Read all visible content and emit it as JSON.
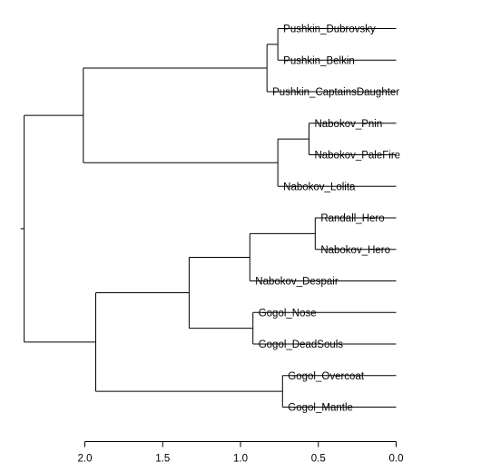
{
  "diagram": {
    "type": "dendrogram",
    "orientation": "horizontal",
    "leaves": [
      "Pushkin_Dubrovsky",
      "Pushkin_Belkin",
      "Pushkin_CaptainsDaughter",
      "Nabokov_Pnin",
      "Nabokov_PaleFire",
      "Nabokov_Lolita",
      "Randall_Hero",
      "Nabokov_Hero",
      "Nabokov_Despair",
      "Gogol_Nose",
      "Gogol_DeadSouls",
      "Gogol_Overcoat",
      "Gogol_Mantle"
    ],
    "merges": [
      {
        "id": "m1",
        "height": 0.76,
        "children": [
          "leaf:0",
          "leaf:1"
        ]
      },
      {
        "id": "m2",
        "height": 0.83,
        "children": [
          "m1",
          "leaf:2"
        ]
      },
      {
        "id": "m3",
        "height": 0.56,
        "children": [
          "leaf:3",
          "leaf:4"
        ]
      },
      {
        "id": "m4",
        "height": 0.76,
        "children": [
          "m3",
          "leaf:5"
        ]
      },
      {
        "id": "m5",
        "height": 2.01,
        "children": [
          "m2",
          "m4"
        ]
      },
      {
        "id": "m6",
        "height": 0.52,
        "children": [
          "leaf:6",
          "leaf:7"
        ]
      },
      {
        "id": "m7",
        "height": 0.94,
        "children": [
          "m6",
          "leaf:8"
        ]
      },
      {
        "id": "m8",
        "height": 0.92,
        "children": [
          "leaf:9",
          "leaf:10"
        ]
      },
      {
        "id": "m9",
        "height": 1.33,
        "children": [
          "m7",
          "m8"
        ]
      },
      {
        "id": "m10",
        "height": 0.73,
        "children": [
          "leaf:11",
          "leaf:12"
        ]
      },
      {
        "id": "m11",
        "height": 1.93,
        "children": [
          "m9",
          "m10"
        ]
      },
      {
        "id": "m12",
        "height": 2.39,
        "children": [
          "m5",
          "m11"
        ]
      }
    ],
    "axis": {
      "range": [
        2.0,
        0.0
      ],
      "ticks": [
        2.0,
        1.5,
        1.0,
        0.5,
        0.0
      ],
      "tick_labels": [
        "2.0",
        "1.5",
        "1.0",
        "0.5",
        "0.0"
      ]
    }
  }
}
